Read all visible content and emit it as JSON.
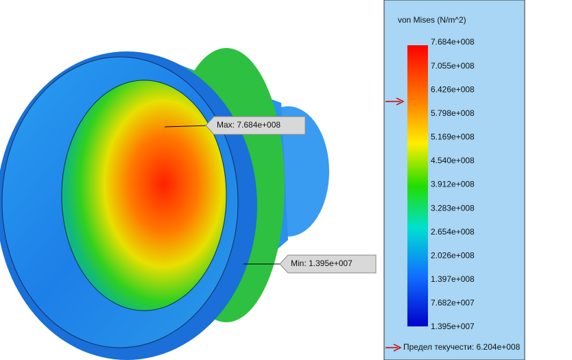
{
  "legend": {
    "title": "von Mises (N/m^2)",
    "labels": [
      "7.684e+008",
      "7.055e+008",
      "6.426e+008",
      "5.798e+008",
      "5.169e+008",
      "4.540e+008",
      "3.912e+008",
      "3.283e+008",
      "2.654e+008",
      "2.026e+008",
      "1.397e+008",
      "7.682e+007",
      "1.395e+007"
    ],
    "yield": "Предел текучести: 6.204e+008"
  },
  "annotations": {
    "max": "Max: 7.684e+008",
    "min": "Min: 1.395e+007"
  }
}
